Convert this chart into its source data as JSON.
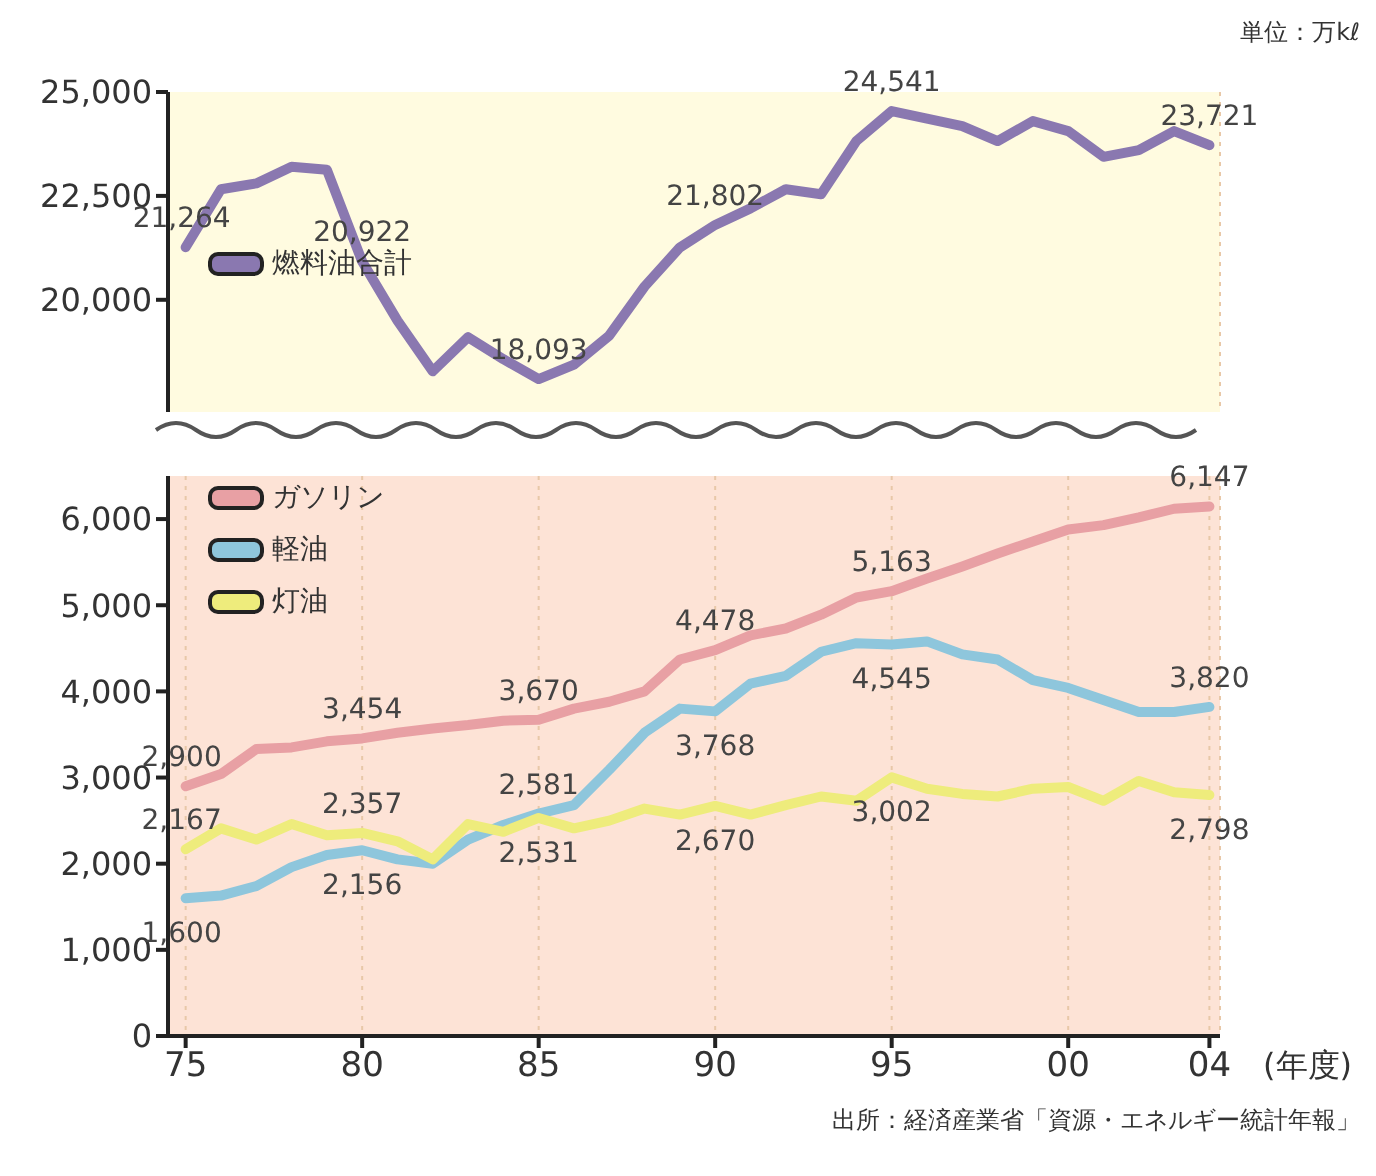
{
  "chart_data": [
    {
      "type": "line",
      "x": [
        1975,
        1976,
        1977,
        1978,
        1979,
        1980,
        1981,
        1982,
        1983,
        1984,
        1985,
        1986,
        1987,
        1988,
        1989,
        1990,
        1991,
        1992,
        1993,
        1994,
        1995,
        1996,
        1997,
        1998,
        1999,
        2000,
        2001,
        2002,
        2003,
        2004
      ],
      "series": [
        {
          "name": "燃料油合計",
          "color": "#8a78b0",
          "values": [
            21264,
            22660,
            22800,
            23200,
            23130,
            20922,
            19500,
            18280,
            19100,
            18570,
            18093,
            18440,
            19140,
            20320,
            21260,
            21802,
            22200,
            22660,
            22540,
            23820,
            24541,
            24360,
            24180,
            23820,
            24300,
            24060,
            23440,
            23600,
            24060,
            23721
          ],
          "value_labels": [
            "21,264",
            null,
            null,
            null,
            null,
            "20,922",
            null,
            null,
            null,
            null,
            "18,093",
            null,
            null,
            null,
            null,
            "21,802",
            null,
            null,
            null,
            null,
            "24,541",
            null,
            null,
            null,
            null,
            null,
            null,
            null,
            null,
            "23,721"
          ]
        }
      ],
      "xlim": [
        1974.5,
        2004.3
      ],
      "xticks": [
        {
          "value": 1975,
          "label": null
        },
        {
          "value": 1980,
          "label": null
        },
        {
          "value": 1985,
          "label": null
        },
        {
          "value": 1990,
          "label": null
        },
        {
          "value": 1995,
          "label": null
        },
        {
          "value": 2000,
          "label": null
        },
        {
          "value": 2004,
          "label": null
        }
      ],
      "ylim": [
        17300,
        25000
      ],
      "yticks": [
        {
          "value": 20000,
          "label": "20,000"
        },
        {
          "value": 22500,
          "label": "22,500"
        },
        {
          "value": 25000,
          "label": "25,000"
        }
      ],
      "tick_labels": "y",
      "grid": "x",
      "legend": "left",
      "annotations": [
        "単位：万kℓ"
      ]
    },
    {
      "type": "line",
      "x": [
        1975,
        1976,
        1977,
        1978,
        1979,
        1980,
        1981,
        1982,
        1983,
        1984,
        1985,
        1986,
        1987,
        1988,
        1989,
        1990,
        1991,
        1992,
        1993,
        1994,
        1995,
        1996,
        1997,
        1998,
        1999,
        2000,
        2001,
        2002,
        2003,
        2004
      ],
      "series": [
        {
          "name": "ガソリン",
          "color": "#e8a0a4",
          "values": [
            2900,
            3040,
            3330,
            3350,
            3420,
            3454,
            3520,
            3570,
            3610,
            3660,
            3670,
            3800,
            3880,
            4000,
            4370,
            4478,
            4650,
            4730,
            4890,
            5090,
            5163,
            5310,
            5450,
            5600,
            5740,
            5880,
            5930,
            6020,
            6120,
            6147
          ],
          "value_labels": [
            "2,900",
            null,
            null,
            null,
            null,
            "3,454",
            null,
            null,
            null,
            null,
            "3,670",
            null,
            null,
            null,
            null,
            "4,478",
            null,
            null,
            null,
            null,
            "5,163",
            null,
            null,
            null,
            null,
            null,
            null,
            null,
            null,
            "6,147"
          ]
        },
        {
          "name": "軽油",
          "color": "#8ec6dc",
          "values": [
            1600,
            1630,
            1740,
            1960,
            2100,
            2156,
            2050,
            2000,
            2280,
            2450,
            2581,
            2680,
            3090,
            3520,
            3800,
            3768,
            4090,
            4180,
            4460,
            4560,
            4545,
            4580,
            4430,
            4370,
            4130,
            4040,
            3900,
            3760,
            3760,
            3820
          ],
          "value_labels": [
            "1,600",
            null,
            null,
            null,
            null,
            "2,156",
            null,
            null,
            null,
            null,
            "2,581",
            null,
            null,
            null,
            null,
            "3,768",
            null,
            null,
            null,
            null,
            "4,545",
            null,
            null,
            null,
            null,
            null,
            null,
            null,
            null,
            "3,820"
          ]
        },
        {
          "name": "灯油",
          "color": "#eeec7c",
          "values": [
            2167,
            2410,
            2280,
            2460,
            2330,
            2357,
            2260,
            2050,
            2460,
            2370,
            2531,
            2410,
            2500,
            2640,
            2570,
            2670,
            2570,
            2680,
            2780,
            2730,
            3002,
            2870,
            2810,
            2780,
            2870,
            2890,
            2730,
            2960,
            2830,
            2798
          ],
          "value_labels": [
            "2,167",
            null,
            null,
            null,
            null,
            "2,357",
            null,
            null,
            null,
            null,
            "2,531",
            null,
            null,
            null,
            null,
            "2,670",
            null,
            null,
            null,
            null,
            "3,002",
            null,
            null,
            null,
            null,
            null,
            null,
            null,
            null,
            "2,798"
          ]
        }
      ],
      "xlim": [
        1974.5,
        2004.3
      ],
      "xticks": [
        {
          "value": 1975,
          "label": "75"
        },
        {
          "value": 1980,
          "label": "80"
        },
        {
          "value": 1985,
          "label": "85"
        },
        {
          "value": 1990,
          "label": "90"
        },
        {
          "value": 1995,
          "label": "95"
        },
        {
          "value": 2000,
          "label": "00"
        },
        {
          "value": 2004,
          "label": "04"
        }
      ],
      "ylim": [
        0,
        6500
      ],
      "yticks": [
        0,
        {
          "value": 1000,
          "label": "1,000"
        },
        {
          "value": 2000,
          "label": "2,000"
        },
        {
          "value": 3000,
          "label": "3,000"
        },
        {
          "value": 4000,
          "label": "4,000"
        },
        {
          "value": 5000,
          "label": "5,000"
        },
        {
          "value": 6000,
          "label": "6,000"
        }
      ],
      "grid": "x",
      "legend": "top left",
      "xlabel": "(年度)",
      "annotations": [
        "出所：経済産業省「資源・エネルギー統計年報」"
      ]
    }
  ]
}
